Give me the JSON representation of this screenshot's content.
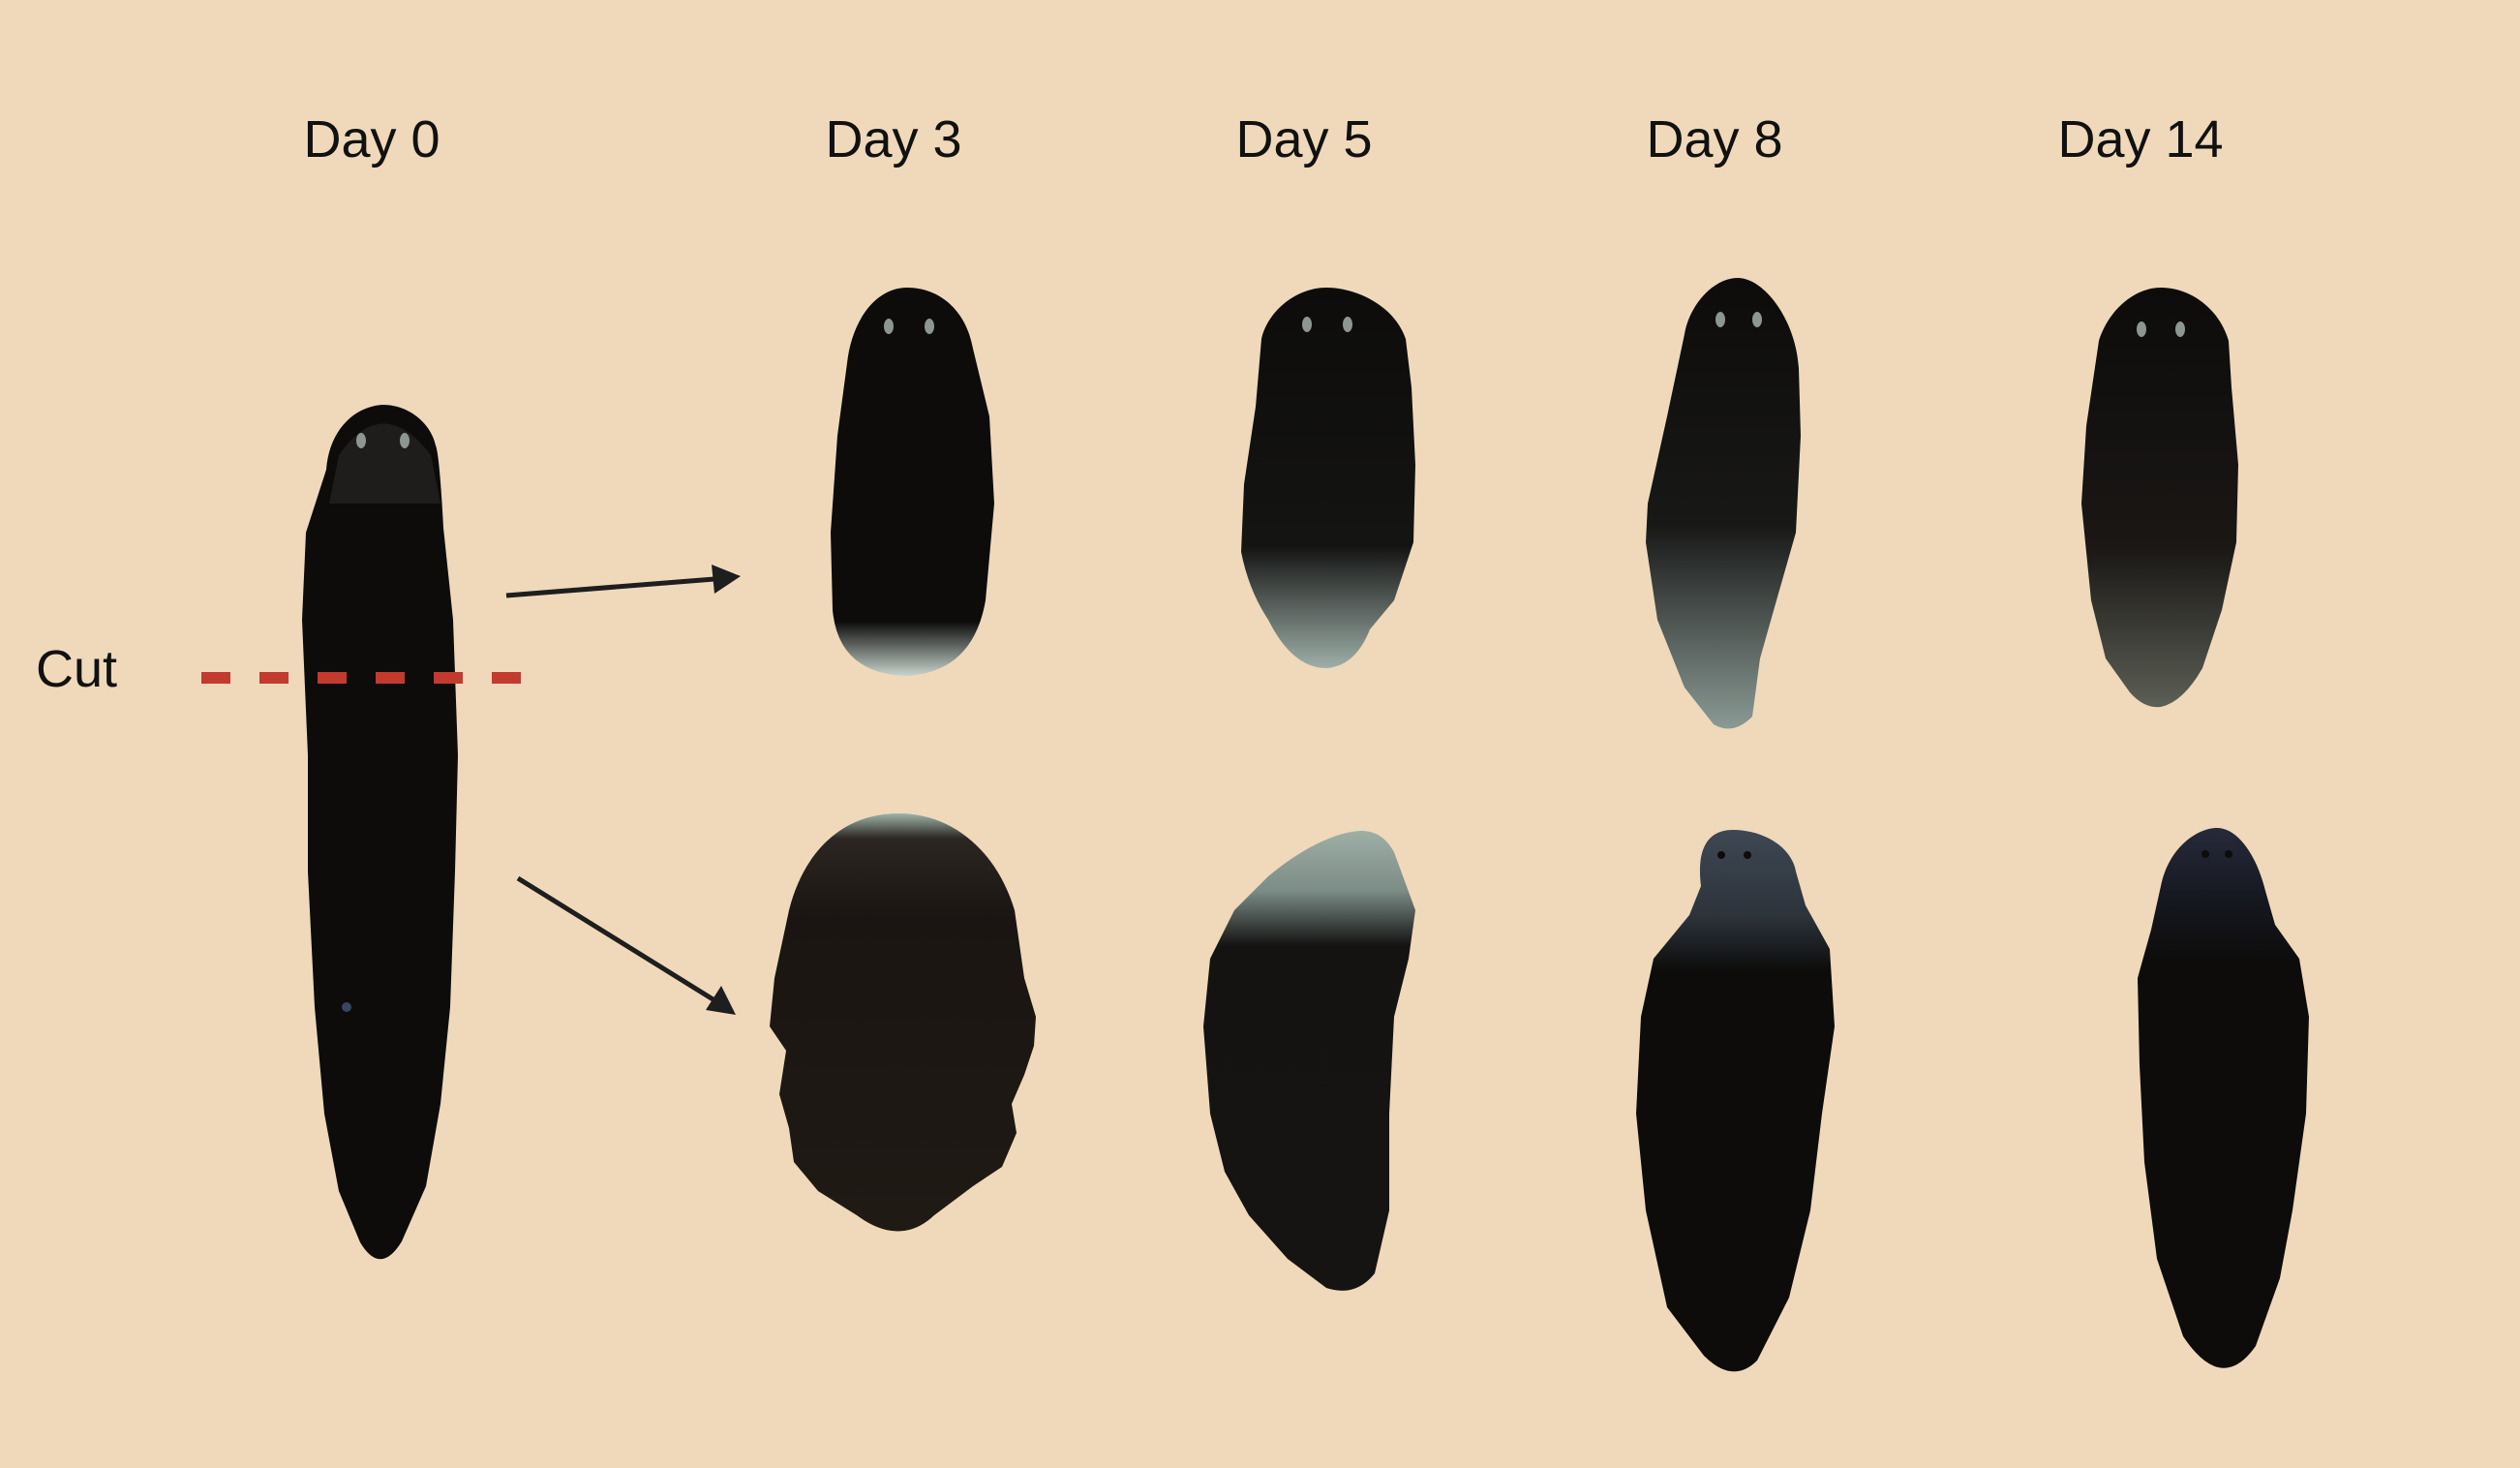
{
  "labels": {
    "day0": "Day 0",
    "day3": "Day 3",
    "day5": "Day 5",
    "day8": "Day 8",
    "day14": "Day 14",
    "cut": "Cut"
  },
  "colors": {
    "background": "#EFD9BA",
    "worm_body": "#0D0C0B",
    "head_tissue": "#2A2826",
    "regenerating_tissue": "#8E9E98",
    "cut_line": "#C23B2E",
    "arrow": "#1E1E1E"
  },
  "icons": {
    "worms": "planarian-silhouette",
    "arrows": "arrow-right-icon",
    "cut_marker": "dashed-line"
  }
}
